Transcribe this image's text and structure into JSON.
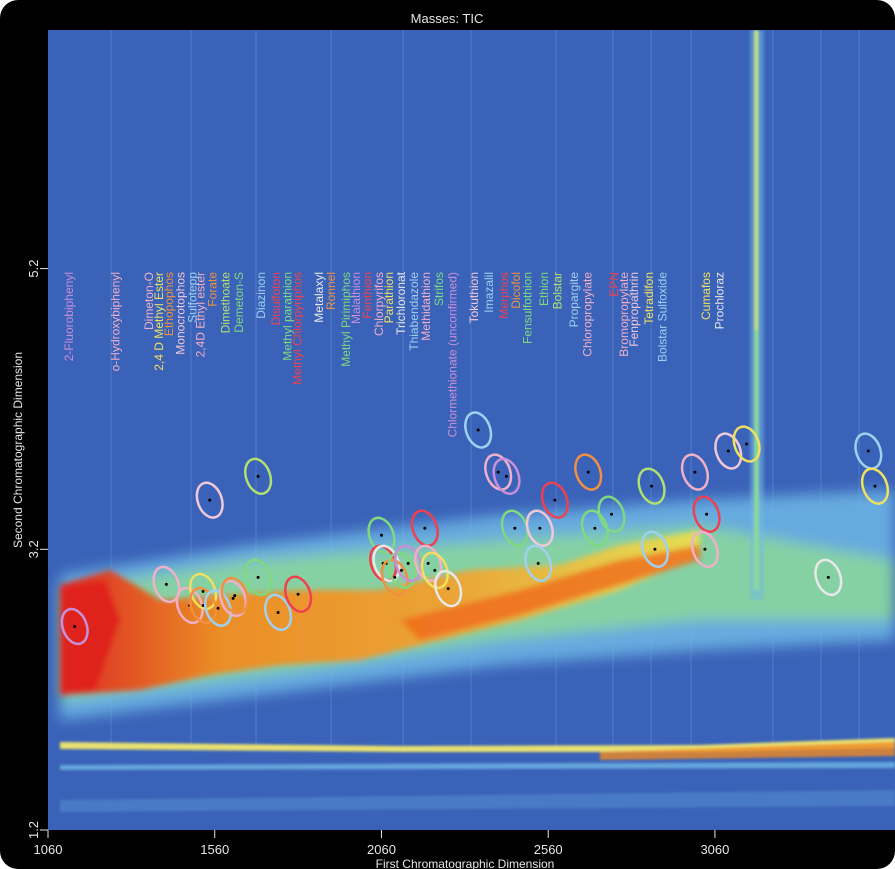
{
  "chart_data": {
    "type": "heatmap",
    "title": "Masses:  TIC",
    "xlabel": "First Chromatographic Dimension",
    "ylabel": "Second Chromatographic Dimension",
    "x_ticks": [
      1060,
      1560,
      2060,
      2560,
      3060
    ],
    "y_ticks": [
      1.2,
      3.2,
      5.2
    ],
    "xlim": [
      1060,
      3600
    ],
    "ylim": [
      1.2,
      6.9
    ],
    "colormap": [
      "#2f5bb0",
      "#5fb0e0",
      "#7fd07a",
      "#f0e040",
      "#f08a20",
      "#e0201c"
    ],
    "colors": {
      "frame": "#000000",
      "plot_bg": "#3a62b8",
      "label_text": "#e6e6e6"
    },
    "compounds": [
      {
        "name": "2-Fluorobiphenyl",
        "label_x": 1135,
        "x": 1140,
        "y": 2.65,
        "color": "#c890d8"
      },
      {
        "name": "o-Hydroxybiphenyl",
        "label_x": 1275,
        "x": 1415,
        "y": 2.95,
        "color": "#f0b0c8"
      },
      {
        "name": "Dimeton-O",
        "label_x": 1375,
        "x": 1485,
        "y": 2.8,
        "color": "#f0b0c8"
      },
      {
        "name": "2,4 D Methyl Ester",
        "label_x": 1405,
        "x": 1525,
        "y": 2.9,
        "color": "#f0e060"
      },
      {
        "name": "Ethopophos",
        "label_x": 1435,
        "x": 1525,
        "y": 2.8,
        "color": "#f09040"
      },
      {
        "name": "Monocrotophos",
        "label_x": 1470,
        "x": 1545,
        "y": 3.55,
        "color": "#f0c8d8"
      },
      {
        "name": "Sulfotepp",
        "label_x": 1505,
        "x": 1570,
        "y": 2.78,
        "color": "#a0d0f0"
      },
      {
        "name": "2,4D Ethyl ester",
        "label_x": 1530,
        "x": 1615,
        "y": 2.85,
        "color": "#f0b0c8"
      },
      {
        "name": "Forate",
        "label_x": 1565,
        "x": 1620,
        "y": 2.87,
        "color": "#f09040"
      },
      {
        "name": "Dimethoate",
        "label_x": 1605,
        "x": 1690,
        "y": 3.72,
        "color": "#b0e070"
      },
      {
        "name": "Demeton-S",
        "label_x": 1645,
        "x": 1690,
        "y": 3.0,
        "color": "#80d880"
      },
      {
        "name": "Diazinon",
        "label_x": 1710,
        "x": 1750,
        "y": 2.75,
        "color": "#a0d0f0"
      },
      {
        "name": "Disulfoton",
        "label_x": 1755,
        "x": 1810,
        "y": 2.88,
        "color": "#f04050"
      },
      {
        "name": "Methyl parathion",
        "label_x": 1790,
        "x": 2060,
        "y": 3.3,
        "color": "#80d880"
      },
      {
        "name": "Methyl Chlorpyriphos",
        "label_x": 1820,
        "x": 2065,
        "y": 3.1,
        "color": "#f04050"
      },
      {
        "name": "Metalaxyl",
        "label_x": 1885,
        "x": 2075,
        "y": 3.1,
        "color": "#e8e8e8"
      },
      {
        "name": "Ronnel",
        "label_x": 1920,
        "x": 2100,
        "y": 3.0,
        "color": "#f09040"
      },
      {
        "name": "Methyl Pirimiphos",
        "label_x": 1965,
        "x": 2120,
        "y": 3.05,
        "color": "#80d880"
      },
      {
        "name": "Malathion",
        "label_x": 1995,
        "x": 2140,
        "y": 3.1,
        "color": "#c890d8"
      },
      {
        "name": "Fenthion",
        "label_x": 2030,
        "x": 2190,
        "y": 3.35,
        "color": "#f04050"
      },
      {
        "name": "Chlorpyrifos",
        "label_x": 2065,
        "x": 2200,
        "y": 3.1,
        "color": "#f0b0c8"
      },
      {
        "name": "Parathion",
        "label_x": 2095,
        "x": 2220,
        "y": 3.05,
        "color": "#f0e060"
      },
      {
        "name": "Trichloronat",
        "label_x": 2130,
        "x": 2260,
        "y": 2.92,
        "color": "#e8e8e8"
      },
      {
        "name": "Thiabendazole",
        "label_x": 2170,
        "x": 2350,
        "y": 4.05,
        "color": "#a0d0f0"
      },
      {
        "name": "Methidathion",
        "label_x": 2205,
        "x": 2410,
        "y": 3.75,
        "color": "#f0b0c8"
      },
      {
        "name": "Strifos",
        "label_x": 2245,
        "x": 2460,
        "y": 3.35,
        "color": "#80d880"
      },
      {
        "name": "Chlormethionate (unconfirmed)",
        "label_x": 2285,
        "x": 2435,
        "y": 3.72,
        "color": "#c890d8"
      },
      {
        "name": "Tokuthion",
        "label_x": 2350,
        "x": 2535,
        "y": 3.35,
        "color": "#f0c8d8"
      },
      {
        "name": "Imazalil",
        "label_x": 2395,
        "x": 2530,
        "y": 3.1,
        "color": "#a0d0f0"
      },
      {
        "name": "Merphos",
        "label_x": 2440,
        "x": 2580,
        "y": 3.55,
        "color": "#f04050"
      },
      {
        "name": "Dicofol",
        "label_x": 2475,
        "x": 2680,
        "y": 3.75,
        "color": "#f09040"
      },
      {
        "name": "Fensulfothion",
        "label_x": 2510,
        "x": 2700,
        "y": 3.35,
        "color": "#80d880"
      },
      {
        "name": "Ethion",
        "label_x": 2560,
        "x": 2750,
        "y": 3.45,
        "color": "#80d880"
      },
      {
        "name": "Bolstar",
        "label_x": 2600,
        "x": 2870,
        "y": 3.65,
        "color": "#b0e070"
      },
      {
        "name": "Propargite",
        "label_x": 2650,
        "x": 2880,
        "y": 3.2,
        "color": "#a0d0f0"
      },
      {
        "name": "Chloropropylate",
        "label_x": 2690,
        "x": 3000,
        "y": 3.75,
        "color": "#f0b0c8"
      },
      {
        "name": "EPN",
        "label_x": 2770,
        "x": 3035,
        "y": 3.45,
        "color": "#f04050"
      },
      {
        "name": "Bromopropylate",
        "label_x": 2800,
        "x": 3030,
        "y": 3.2,
        "color": "#f0b0c8"
      },
      {
        "name": "Fenpropathrin",
        "label_x": 2830,
        "x": 3100,
        "y": 3.9,
        "color": "#f0c8d8"
      },
      {
        "name": "Tetradifon",
        "label_x": 2875,
        "x": 3155,
        "y": 3.95,
        "color": "#f0e060"
      },
      {
        "name": "Bolstar Sulfoxide",
        "label_x": 2915,
        "x": 3520,
        "y": 3.9,
        "color": "#a0d0f0"
      },
      {
        "name": "Cumafos",
        "label_x": 3045,
        "x": 3540,
        "y": 3.65,
        "color": "#f0e060"
      },
      {
        "name": "Prochloraz",
        "label_x": 3085,
        "x": 3400,
        "y": 3.0,
        "color": "#e8e8e8"
      }
    ]
  }
}
